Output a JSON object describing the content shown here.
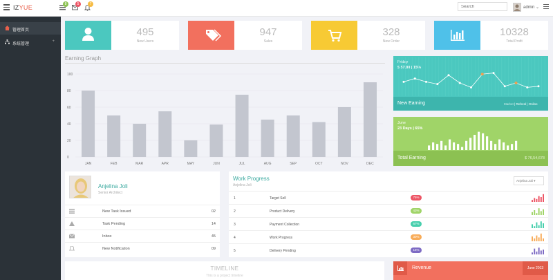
{
  "brand": {
    "prefix": "IZ",
    "suffix": "YUE"
  },
  "topbar": {
    "badges": [
      "8",
      "5",
      "7"
    ],
    "search_placeholder": "Search",
    "user": "admin"
  },
  "sidebar": {
    "items": [
      {
        "label": "管理首页",
        "active": true
      },
      {
        "label": "系统管理",
        "active": false,
        "expand": "+"
      }
    ]
  },
  "stats": [
    {
      "value": "495",
      "label": "New Users",
      "color": "#4bc8bf",
      "icon": "user-icon"
    },
    {
      "value": "947",
      "label": "Sales",
      "color": "#f2705e",
      "icon": "tag-icon"
    },
    {
      "value": "328",
      "label": "New Order",
      "color": "#f7ca34",
      "icon": "cart-icon"
    },
    {
      "value": "10328",
      "label": "Total Profit",
      "color": "#4fc1e9",
      "icon": "bar-chart-icon"
    }
  ],
  "earning_graph": {
    "title": "Earning Graph"
  },
  "chart_data": {
    "type": "bar",
    "categories": [
      "JAN",
      "FEB",
      "MAR",
      "APR",
      "MAY",
      "JUN",
      "JUL",
      "AUG",
      "SEP",
      "OCT",
      "NOV",
      "DEC"
    ],
    "values": [
      80,
      50,
      40,
      55,
      20,
      39,
      75,
      45,
      50,
      42,
      60,
      90
    ],
    "ylim": [
      0,
      100
    ],
    "yticks": [
      0,
      20,
      40,
      60,
      80,
      100
    ],
    "bar_color": "#c3c6cf",
    "grid": true
  },
  "new_earning": {
    "period": "Friday",
    "amount": "$ 57,00 | 15%",
    "title": "New Earning",
    "tabs": [
      "Market",
      "Referal",
      "Online"
    ],
    "line_values": [
      11,
      14,
      11,
      9,
      17,
      10,
      6,
      18,
      19,
      7,
      10,
      6,
      7
    ],
    "highlight_points": [
      7,
      10
    ],
    "color": "#4bc8bf",
    "footer_color": "#3db5ad"
  },
  "total_earning": {
    "period": "June",
    "detail": "23 Days | 65%",
    "title": "Total Earning",
    "amount": "$ 76,54,678",
    "bars": [
      3,
      5,
      4,
      6,
      3,
      7,
      5,
      4,
      2,
      6,
      8,
      10,
      12,
      11,
      9,
      6,
      4,
      7,
      5,
      3,
      4,
      6
    ],
    "color": "#a0d468",
    "footer_color": "#8cc152"
  },
  "profile": {
    "name": "Anjelina Joli",
    "role": "Senior Architect",
    "rows": [
      {
        "icon": "list-icon",
        "label": "New Task Issued",
        "count": "02"
      },
      {
        "icon": "warning-icon",
        "label": "Task Pending",
        "count": "14"
      },
      {
        "icon": "mail-icon",
        "label": "Inbox",
        "count": "45"
      },
      {
        "icon": "bell-icon",
        "label": "New Notification",
        "count": "09"
      }
    ]
  },
  "work_progress": {
    "title": "Work Progress",
    "subtitle": "Anjelina Joli",
    "select": "Anjelina Joli",
    "rows": [
      {
        "n": "1",
        "task": "Target Sell",
        "pct": "75%",
        "color": "#ed5565",
        "spark": [
          2,
          4,
          3,
          6,
          5,
          8
        ]
      },
      {
        "n": "2",
        "task": "Product Delivery",
        "pct": "43%",
        "color": "#a0d468",
        "spark": [
          3,
          5,
          2,
          7,
          4,
          6
        ]
      },
      {
        "n": "3",
        "task": "Payment Collection",
        "pct": "67%",
        "color": "#48cfad",
        "spark": [
          4,
          2,
          6,
          3,
          7,
          5
        ]
      },
      {
        "n": "4",
        "task": "Work Progress",
        "pct": "30%",
        "color": "#f8ac59",
        "spark": [
          5,
          3,
          6,
          4,
          8,
          3
        ]
      },
      {
        "n": "5",
        "task": "Delivery Pending",
        "pct": "15%",
        "color": "#7e6bc4",
        "spark": [
          2,
          6,
          3,
          7,
          4,
          5
        ]
      }
    ]
  },
  "timeline": {
    "title": "TIMELINE",
    "subtitle": "This is a project timeline"
  },
  "revenue": {
    "title": "Revenue",
    "date": "June 2013"
  }
}
